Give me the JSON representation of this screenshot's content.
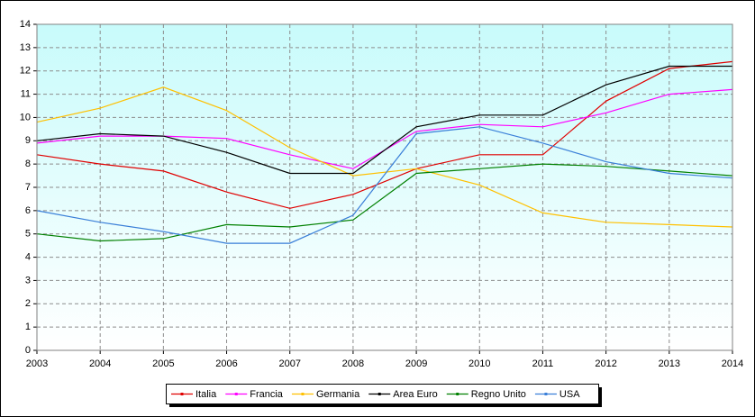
{
  "chart_data": {
    "type": "line",
    "x": [
      2003,
      2004,
      2005,
      2006,
      2007,
      2008,
      2009,
      2010,
      2011,
      2012,
      2013,
      2014
    ],
    "xlim": [
      2003,
      2014
    ],
    "xticks": [
      2003,
      2004,
      2005,
      2006,
      2007,
      2008,
      2009,
      2010,
      2011,
      2012,
      2013,
      2014
    ],
    "ylim": [
      0,
      14
    ],
    "yticks": [
      0,
      1,
      2,
      3,
      4,
      5,
      6,
      7,
      8,
      9,
      10,
      11,
      12,
      13,
      14
    ],
    "grid": true,
    "legend": "bottom",
    "series": [
      {
        "name": "Italia",
        "color": "#e00000",
        "values": [
          8.4,
          8.0,
          7.7,
          6.8,
          6.1,
          6.7,
          7.8,
          8.4,
          8.4,
          10.7,
          12.1,
          12.4
        ]
      },
      {
        "name": "Francia",
        "color": "#ff00ff",
        "values": [
          8.9,
          9.2,
          9.2,
          9.1,
          8.4,
          7.8,
          9.4,
          9.7,
          9.6,
          10.2,
          11.0,
          11.2
        ]
      },
      {
        "name": "Germania",
        "color": "#ffc000",
        "values": [
          9.8,
          10.4,
          11.3,
          10.3,
          8.7,
          7.5,
          7.8,
          7.1,
          5.9,
          5.5,
          5.4,
          5.3
        ]
      },
      {
        "name": "Area Euro",
        "color": "#000000",
        "values": [
          9.0,
          9.3,
          9.2,
          8.5,
          7.6,
          7.6,
          9.6,
          10.1,
          10.1,
          11.4,
          12.2,
          12.2
        ]
      },
      {
        "name": "Regno Unito",
        "color": "#008000",
        "values": [
          5.0,
          4.7,
          4.8,
          5.4,
          5.3,
          5.6,
          7.6,
          7.8,
          8.0,
          7.9,
          7.7,
          7.5
        ]
      },
      {
        "name": "USA",
        "color": "#3a7fd8",
        "values": [
          6.0,
          5.5,
          5.1,
          4.6,
          4.6,
          5.8,
          9.3,
          9.6,
          8.9,
          8.1,
          7.6,
          7.4
        ]
      }
    ]
  }
}
